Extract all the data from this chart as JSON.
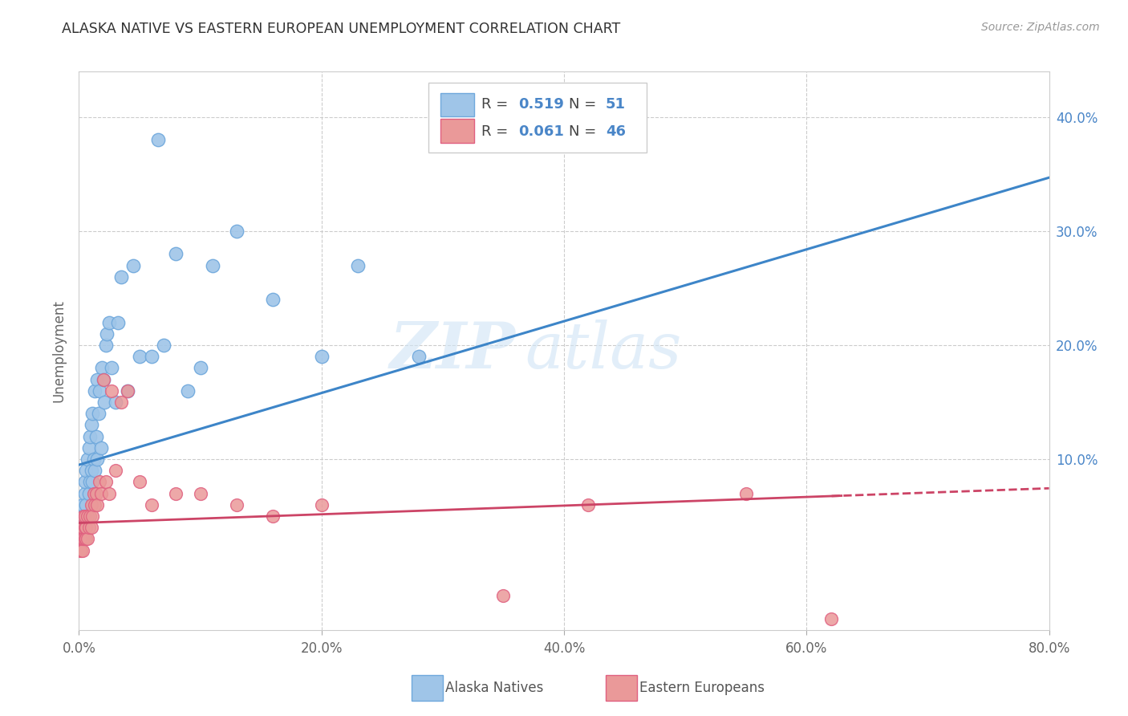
{
  "title": "ALASKA NATIVE VS EASTERN EUROPEAN UNEMPLOYMENT CORRELATION CHART",
  "source": "Source: ZipAtlas.com",
  "ylabel_label": "Unemployment",
  "right_ytick_labels": [
    "10.0%",
    "20.0%",
    "30.0%",
    "40.0%"
  ],
  "right_ytick_vals": [
    0.1,
    0.2,
    0.3,
    0.4
  ],
  "xtick_vals": [
    0.0,
    0.2,
    0.4,
    0.6,
    0.8
  ],
  "xtick_labels": [
    "0.0%",
    "20.0%",
    "40.0%",
    "60.0%",
    "80.0%"
  ],
  "xlim": [
    0.0,
    0.8
  ],
  "ylim": [
    -0.05,
    0.44
  ],
  "watermark": "ZIPatlas",
  "blue_color": "#9fc5e8",
  "pink_color": "#ea9999",
  "blue_line_color": "#3d85c8",
  "pink_line_color": "#cc4466",
  "blue_edge_color": "#6fa8dc",
  "pink_edge_color": "#e06080",
  "alaska_native_x": [
    0.002,
    0.003,
    0.004,
    0.005,
    0.005,
    0.006,
    0.006,
    0.007,
    0.007,
    0.008,
    0.008,
    0.009,
    0.009,
    0.01,
    0.01,
    0.011,
    0.011,
    0.012,
    0.013,
    0.013,
    0.014,
    0.015,
    0.015,
    0.016,
    0.017,
    0.018,
    0.019,
    0.02,
    0.021,
    0.022,
    0.023,
    0.025,
    0.027,
    0.03,
    0.032,
    0.035,
    0.04,
    0.045,
    0.05,
    0.06,
    0.065,
    0.07,
    0.08,
    0.09,
    0.1,
    0.11,
    0.13,
    0.16,
    0.2,
    0.23,
    0.28
  ],
  "alaska_native_y": [
    0.04,
    0.06,
    0.05,
    0.07,
    0.08,
    0.06,
    0.09,
    0.05,
    0.1,
    0.07,
    0.11,
    0.08,
    0.12,
    0.09,
    0.13,
    0.08,
    0.14,
    0.1,
    0.09,
    0.16,
    0.12,
    0.1,
    0.17,
    0.14,
    0.16,
    0.11,
    0.18,
    0.17,
    0.15,
    0.2,
    0.21,
    0.22,
    0.18,
    0.15,
    0.22,
    0.26,
    0.16,
    0.27,
    0.19,
    0.19,
    0.38,
    0.2,
    0.28,
    0.16,
    0.18,
    0.27,
    0.3,
    0.24,
    0.19,
    0.27,
    0.19
  ],
  "eastern_european_x": [
    0.001,
    0.001,
    0.002,
    0.002,
    0.002,
    0.003,
    0.003,
    0.003,
    0.004,
    0.004,
    0.005,
    0.005,
    0.005,
    0.006,
    0.006,
    0.007,
    0.007,
    0.008,
    0.009,
    0.01,
    0.01,
    0.011,
    0.012,
    0.013,
    0.014,
    0.015,
    0.017,
    0.018,
    0.02,
    0.022,
    0.025,
    0.027,
    0.03,
    0.035,
    0.04,
    0.05,
    0.06,
    0.08,
    0.1,
    0.13,
    0.16,
    0.2,
    0.35,
    0.42,
    0.55,
    0.62
  ],
  "eastern_european_y": [
    0.02,
    0.03,
    0.02,
    0.04,
    0.03,
    0.02,
    0.03,
    0.04,
    0.03,
    0.05,
    0.03,
    0.04,
    0.05,
    0.03,
    0.04,
    0.03,
    0.05,
    0.04,
    0.05,
    0.04,
    0.06,
    0.05,
    0.07,
    0.06,
    0.07,
    0.06,
    0.08,
    0.07,
    0.17,
    0.08,
    0.07,
    0.16,
    0.09,
    0.15,
    0.16,
    0.08,
    0.06,
    0.07,
    0.07,
    0.06,
    0.05,
    0.06,
    -0.02,
    0.06,
    0.07,
    -0.04
  ]
}
